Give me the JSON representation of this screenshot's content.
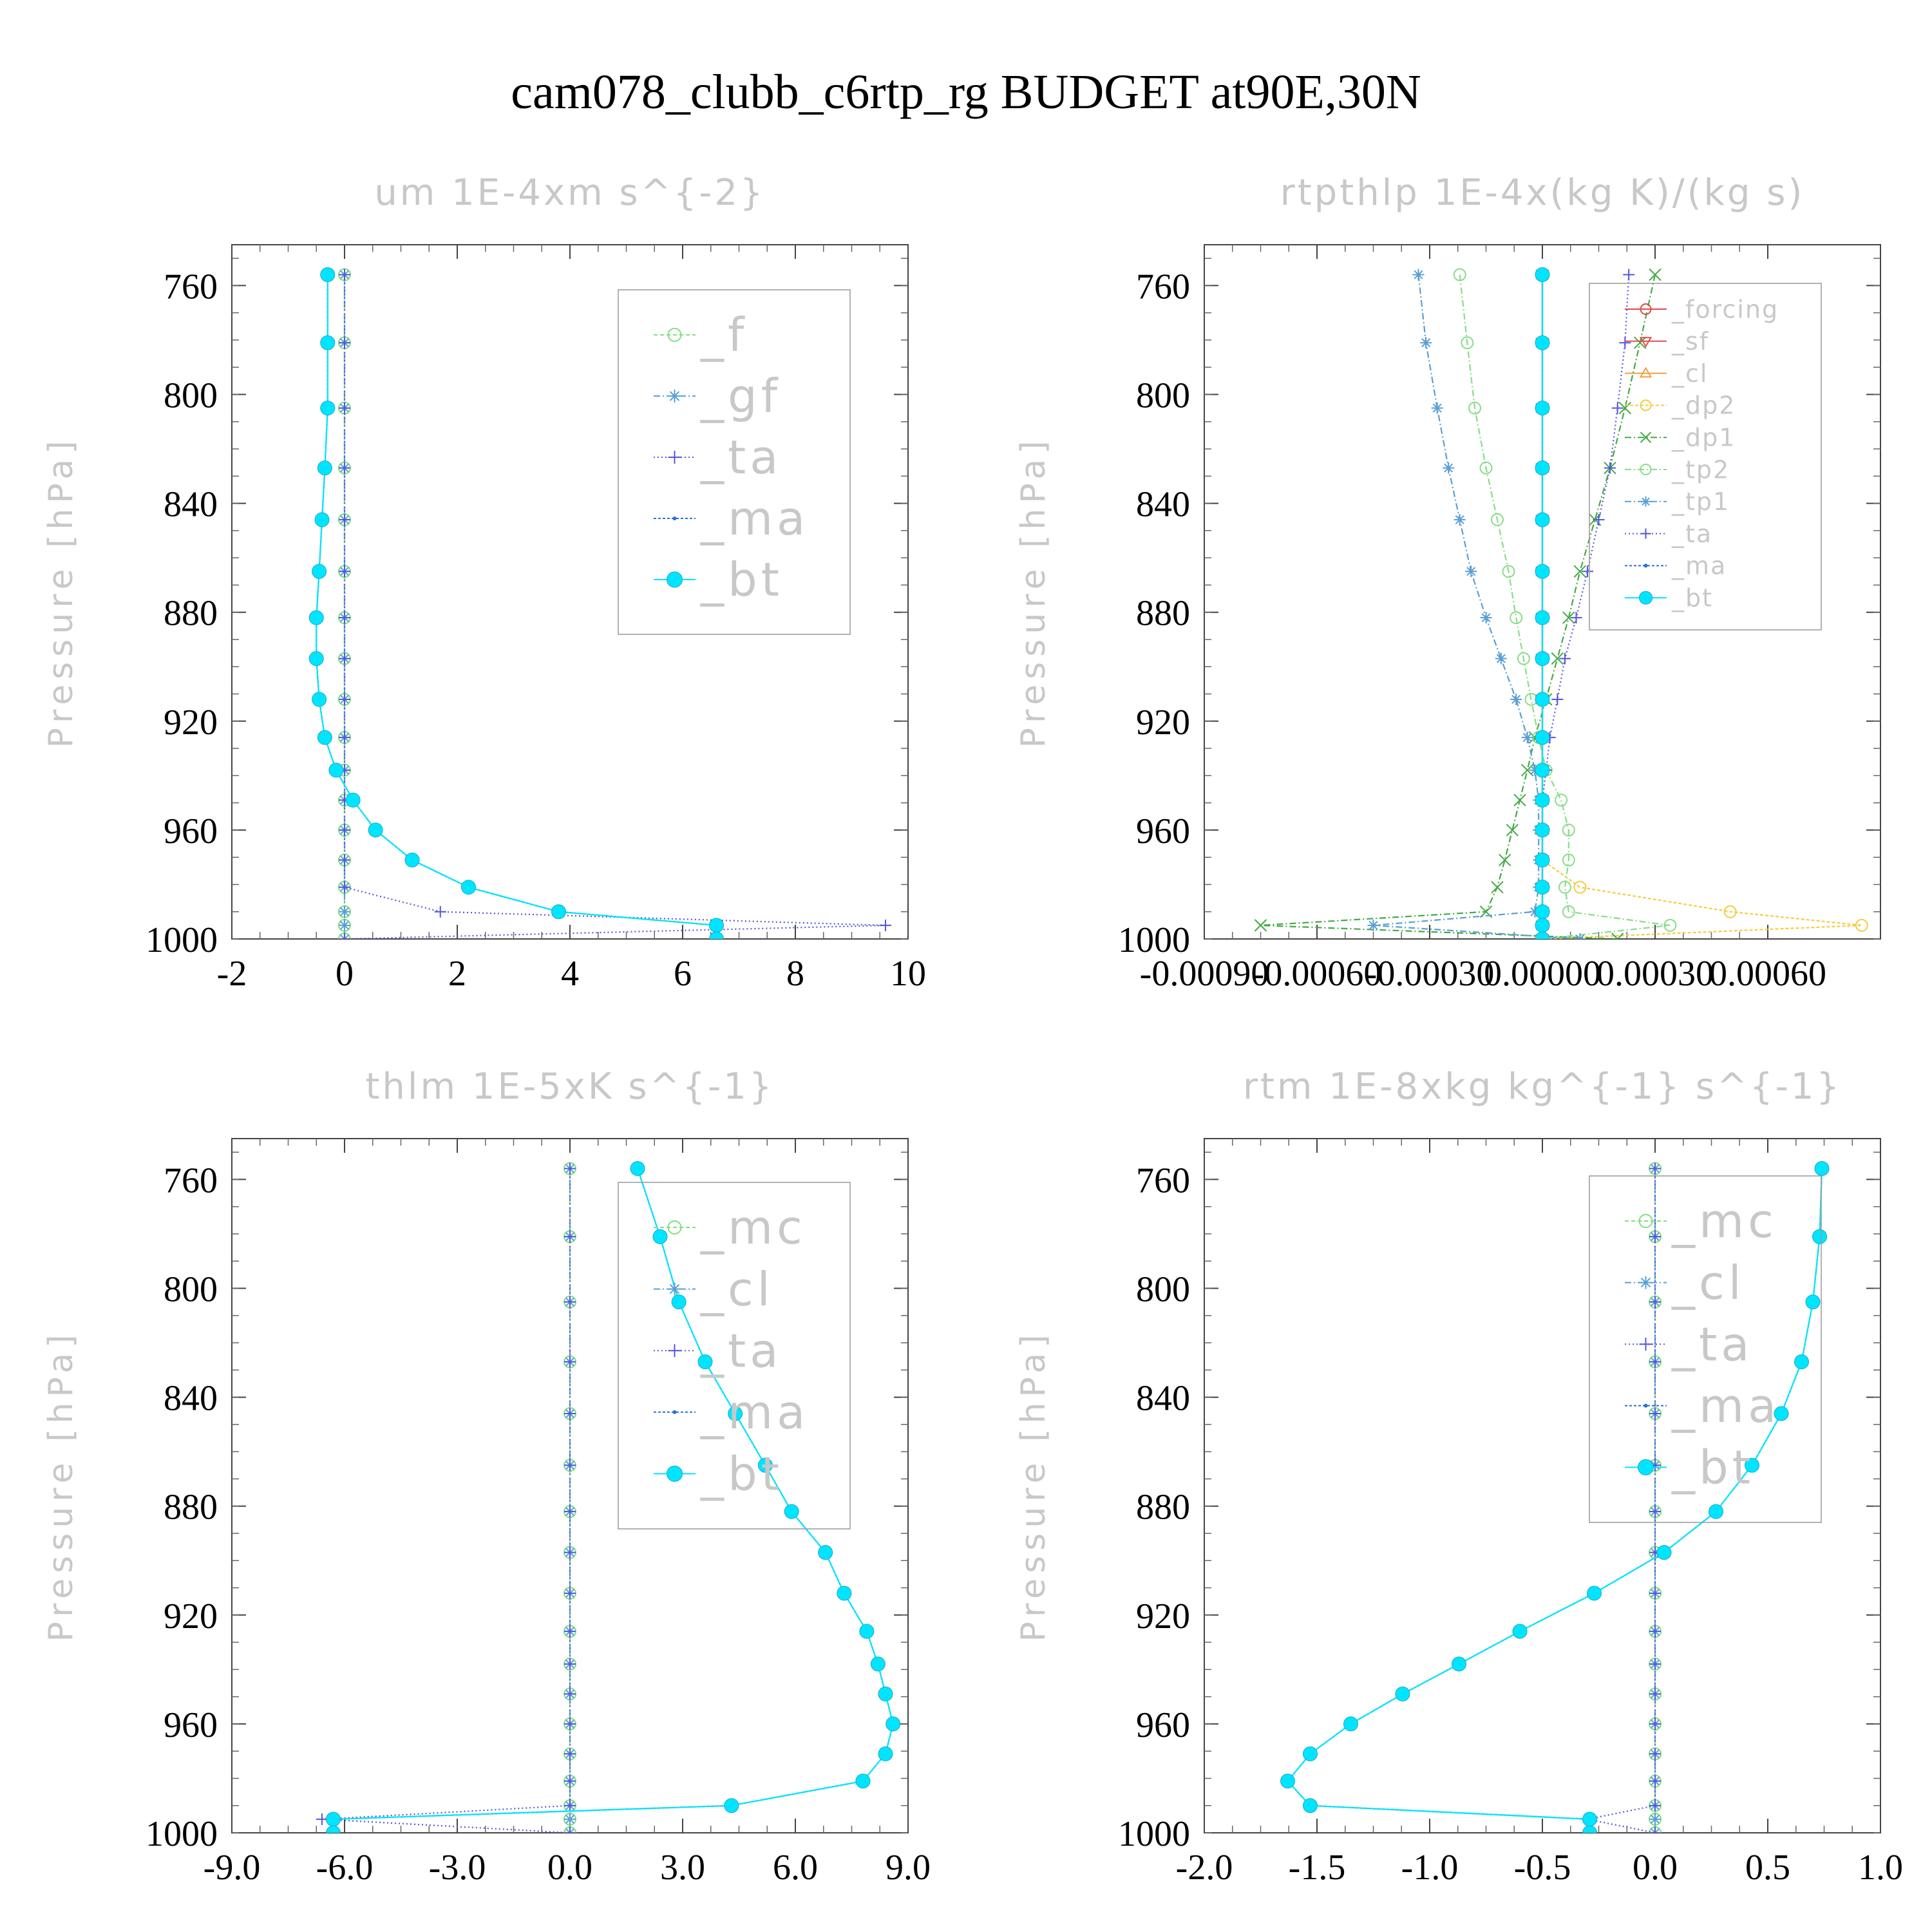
{
  "figure_title": "cam078_clubb_c6rtp_rg  BUDGET at90E,30N",
  "y_axis_label": "Pressure [hPa]",
  "pressure_ticks": [
    "760",
    "800",
    "840",
    "880",
    "920",
    "960",
    "1000"
  ],
  "chart_data": [
    {
      "type": "line",
      "title": "um   1E-4xm s^{-2}",
      "ylabel": "Pressure [hPa]",
      "ylim": [
        1000,
        745
      ],
      "xlim": [
        -2,
        10
      ],
      "xticks": [
        -2,
        0,
        2,
        4,
        6,
        8,
        10
      ],
      "xtick_labels": [
        "-2",
        "0",
        "2",
        "4",
        "6",
        "8",
        "10"
      ],
      "legend_position": "top-right",
      "pressure": [
        756,
        781,
        805,
        827,
        846,
        865,
        882,
        897,
        912,
        926,
        938,
        949,
        960,
        971,
        981,
        990,
        995,
        1000
      ],
      "series": [
        {
          "name": "_f",
          "color": "#7ee07e",
          "marker": "circle-open",
          "dash": "6 4",
          "values": [
            0,
            0,
            0,
            0,
            0,
            0,
            0,
            0,
            0,
            0,
            0,
            0,
            0,
            0,
            0,
            0,
            0,
            0
          ]
        },
        {
          "name": "_gf",
          "color": "#5a9fd4",
          "marker": "asterisk",
          "dash": "10 4 2 4",
          "values": [
            0,
            0,
            0,
            0,
            0,
            0,
            0,
            0,
            0,
            0,
            0,
            0,
            0,
            0,
            0,
            0,
            0,
            0
          ]
        },
        {
          "name": "_ta",
          "color": "#5555dd",
          "marker": "plus",
          "dash": "2 4",
          "values": [
            0,
            0,
            0,
            0,
            0,
            0,
            0,
            0,
            0,
            0,
            0,
            0,
            0,
            0,
            0,
            1.7,
            9.6,
            0
          ]
        },
        {
          "name": "_ma",
          "color": "#2e6fd6",
          "marker": "dot",
          "dash": "4 3",
          "values": [
            -0.3,
            -0.3,
            -0.3,
            -0.35,
            -0.4,
            -0.45,
            -0.5,
            -0.5,
            -0.45,
            -0.35,
            -0.15,
            0.15,
            0.55,
            1.2,
            2.2,
            3.8,
            6.6,
            6.6
          ]
        },
        {
          "name": "_bt",
          "color": "#00e5ff",
          "marker": "filled-circle",
          "dash": "",
          "values": [
            -0.3,
            -0.3,
            -0.3,
            -0.35,
            -0.4,
            -0.45,
            -0.5,
            -0.5,
            -0.45,
            -0.35,
            -0.15,
            0.15,
            0.55,
            1.2,
            2.2,
            3.8,
            6.6,
            6.6
          ]
        }
      ]
    },
    {
      "type": "line",
      "title": "rtpthlp   1E-4x(kg K)/(kg s)",
      "ylabel": "Pressure [hPa]",
      "ylim": [
        1000,
        745
      ],
      "xlim": [
        -0.0009,
        0.0009
      ],
      "xticks": [
        -0.0009,
        -0.0006,
        -0.0003,
        0.0,
        0.0003,
        0.0006
      ],
      "xtick_labels": [
        "-0.00090",
        "-0.00060",
        "-0.00030",
        "0.00000",
        "0.00030",
        "0.00060"
      ],
      "legend_position": "top-right",
      "pressure": [
        756,
        781,
        805,
        827,
        846,
        865,
        882,
        897,
        912,
        926,
        938,
        949,
        960,
        971,
        981,
        990,
        995,
        1000
      ],
      "series": [
        {
          "name": "_forcing",
          "color": "#e04848",
          "marker": "circle-open",
          "dash": "",
          "values": [
            0,
            0,
            0,
            0,
            0,
            0,
            0,
            0,
            0,
            0,
            0,
            0,
            0,
            0,
            0,
            0,
            0,
            0
          ]
        },
        {
          "name": "_sf",
          "color": "#e05050",
          "marker": "triangle-down",
          "dash": "",
          "values": [
            0,
            0,
            0,
            0,
            0,
            0,
            0,
            0,
            0,
            0,
            0,
            0,
            0,
            0,
            0,
            0,
            0,
            0
          ]
        },
        {
          "name": "_cl",
          "color": "#f0a040",
          "marker": "triangle-up",
          "dash": "",
          "values": [
            0,
            0,
            0,
            0,
            0,
            0,
            0,
            0,
            0,
            0,
            0,
            0,
            0,
            0,
            0,
            0,
            0,
            0
          ]
        },
        {
          "name": "_dp2",
          "color": "#f5cc40",
          "marker": "circle-open",
          "dash": "5 3",
          "values": [
            0,
            0,
            0,
            0,
            0,
            0,
            0,
            0,
            0,
            0,
            0,
            0,
            0,
            0,
            0.0001,
            0.0005,
            0.00085,
            0
          ]
        },
        {
          "name": "_dp1",
          "color": "#44aa44",
          "marker": "x",
          "dash": "10 4 2 4",
          "values": [
            0.0003,
            0.00026,
            0.00022,
            0.00018,
            0.00014,
            0.0001,
            7e-05,
            4e-05,
            1e-05,
            -2e-05,
            -4e-05,
            -6e-05,
            -8e-05,
            -0.0001,
            -0.00012,
            -0.00015,
            -0.00075,
            0.0002
          ]
        },
        {
          "name": "_tp2",
          "color": "#88dd88",
          "marker": "circle-open",
          "dash": "10 4 2 4",
          "values": [
            -0.00022,
            -0.0002,
            -0.00018,
            -0.00015,
            -0.00012,
            -9e-05,
            -7e-05,
            -5e-05,
            -3e-05,
            -1e-05,
            1e-05,
            5e-05,
            7e-05,
            7e-05,
            6e-05,
            7e-05,
            0.00034,
            0
          ]
        },
        {
          "name": "_tp1",
          "color": "#5a9fd4",
          "marker": "asterisk",
          "dash": "10 4 2 4",
          "values": [
            -0.00033,
            -0.00031,
            -0.00028,
            -0.00025,
            -0.00022,
            -0.00019,
            -0.00015,
            -0.00011,
            -7e-05,
            -4e-05,
            -2e-05,
            -1e-05,
            -1e-05,
            -1e-05,
            -1e-05,
            -2e-05,
            -0.00045,
            0.0001
          ]
        },
        {
          "name": "_ta",
          "color": "#5555dd",
          "marker": "plus",
          "dash": "2 4",
          "values": [
            0.00023,
            0.00022,
            0.0002,
            0.00018,
            0.00015,
            0.00012,
            9e-05,
            6e-05,
            4e-05,
            2e-05,
            1e-05,
            0,
            0,
            0,
            0,
            0,
            0,
            0
          ]
        },
        {
          "name": "_ma",
          "color": "#2e6fd6",
          "marker": "dot",
          "dash": "4 3",
          "values": [
            0,
            0,
            0,
            0,
            0,
            0,
            0,
            0,
            0,
            0,
            0,
            0,
            0,
            0,
            0,
            0,
            0,
            0
          ]
        },
        {
          "name": "_bt",
          "color": "#00e5ff",
          "marker": "filled-circle",
          "dash": "",
          "values": [
            0,
            0,
            0,
            0,
            0,
            0,
            0,
            0,
            0,
            0,
            0,
            0,
            0,
            0,
            0,
            0,
            0,
            0
          ]
        }
      ]
    },
    {
      "type": "line",
      "title": "thlm   1E-5xK s^{-1}",
      "ylabel": "Pressure [hPa]",
      "ylim": [
        1000,
        745
      ],
      "xlim": [
        -9,
        9
      ],
      "xticks": [
        -9,
        -6,
        -3,
        0,
        3,
        6,
        9
      ],
      "xtick_labels": [
        "-9.0",
        "-6.0",
        "-3.0",
        "0.0",
        "3.0",
        "6.0",
        "9.0"
      ],
      "legend_position": "top-right",
      "pressure": [
        756,
        781,
        805,
        827,
        846,
        865,
        882,
        897,
        912,
        926,
        938,
        949,
        960,
        971,
        981,
        990,
        995,
        1000
      ],
      "series": [
        {
          "name": "_mc",
          "color": "#7ee07e",
          "marker": "circle-open",
          "dash": "6 4",
          "values": [
            0,
            0,
            0,
            0,
            0,
            0,
            0,
            0,
            0,
            0,
            0,
            0,
            0,
            0,
            0,
            0,
            0,
            0
          ]
        },
        {
          "name": "_cl",
          "color": "#5a9fd4",
          "marker": "asterisk",
          "dash": "10 4 2 4",
          "values": [
            0,
            0,
            0,
            0,
            0,
            0,
            0,
            0,
            0,
            0,
            0,
            0,
            0,
            0,
            0,
            0,
            0,
            0
          ]
        },
        {
          "name": "_ta",
          "color": "#5555dd",
          "marker": "plus",
          "dash": "2 4",
          "values": [
            0,
            0,
            0,
            0,
            0,
            0,
            0,
            0,
            0,
            0,
            0,
            0,
            0,
            0,
            0,
            0,
            -6.6,
            0
          ]
        },
        {
          "name": "_ma",
          "color": "#2e6fd6",
          "marker": "dot",
          "dash": "4 3",
          "values": [
            1.8,
            2.4,
            2.9,
            3.6,
            4.4,
            5.2,
            5.9,
            6.8,
            7.3,
            7.9,
            8.2,
            8.4,
            8.6,
            8.4,
            7.8,
            4.3,
            -6.3,
            -6.3
          ]
        },
        {
          "name": "_bt",
          "color": "#00e5ff",
          "marker": "filled-circle",
          "dash": "",
          "values": [
            1.8,
            2.4,
            2.9,
            3.6,
            4.4,
            5.2,
            5.9,
            6.8,
            7.3,
            7.9,
            8.2,
            8.4,
            8.6,
            8.4,
            7.8,
            4.3,
            -6.3,
            -6.3
          ]
        }
      ]
    },
    {
      "type": "line",
      "title": "rtm   1E-8xkg kg^{-1} s^{-1}",
      "ylabel": "Pressure [hPa]",
      "ylim": [
        1000,
        745
      ],
      "xlim": [
        -2,
        1
      ],
      "xticks": [
        -2,
        -1.5,
        -1,
        -0.5,
        0,
        0.5,
        1
      ],
      "xtick_labels": [
        "-2.0",
        "-1.5",
        "-1.0",
        "-0.5",
        "0.0",
        "0.5",
        "1.0"
      ],
      "legend_position": "top-right",
      "pressure": [
        756,
        781,
        805,
        827,
        846,
        865,
        882,
        897,
        912,
        926,
        938,
        949,
        960,
        971,
        981,
        990,
        995,
        1000
      ],
      "series": [
        {
          "name": "_mc",
          "color": "#7ee07e",
          "marker": "circle-open",
          "dash": "6 4",
          "values": [
            0,
            0,
            0,
            0,
            0,
            0,
            0,
            0,
            0,
            0,
            0,
            0,
            0,
            0,
            0,
            0,
            0,
            0
          ]
        },
        {
          "name": "_cl",
          "color": "#5a9fd4",
          "marker": "asterisk",
          "dash": "10 4 2 4",
          "values": [
            0,
            0,
            0,
            0,
            0,
            0,
            0,
            0,
            0,
            0,
            0,
            0,
            0,
            0,
            0,
            0,
            0,
            0
          ]
        },
        {
          "name": "_ta",
          "color": "#5555dd",
          "marker": "plus",
          "dash": "2 4",
          "values": [
            0,
            0,
            0,
            0,
            0,
            0,
            0,
            0,
            0,
            0,
            0,
            0,
            0,
            0,
            0,
            0,
            -0.3,
            0
          ]
        },
        {
          "name": "_ma",
          "color": "#2e6fd6",
          "marker": "dot",
          "dash": "4 3",
          "values": [
            0.74,
            0.73,
            0.7,
            0.65,
            0.56,
            0.43,
            0.27,
            0.04,
            -0.27,
            -0.6,
            -0.87,
            -1.12,
            -1.35,
            -1.53,
            -1.63,
            -1.53,
            -0.29,
            -0.29
          ]
        },
        {
          "name": "_bt",
          "color": "#00e5ff",
          "marker": "filled-circle",
          "dash": "",
          "values": [
            0.74,
            0.73,
            0.7,
            0.65,
            0.56,
            0.43,
            0.27,
            0.04,
            -0.27,
            -0.6,
            -0.87,
            -1.12,
            -1.35,
            -1.53,
            -1.63,
            -1.53,
            -0.29,
            -0.29
          ]
        }
      ]
    }
  ]
}
